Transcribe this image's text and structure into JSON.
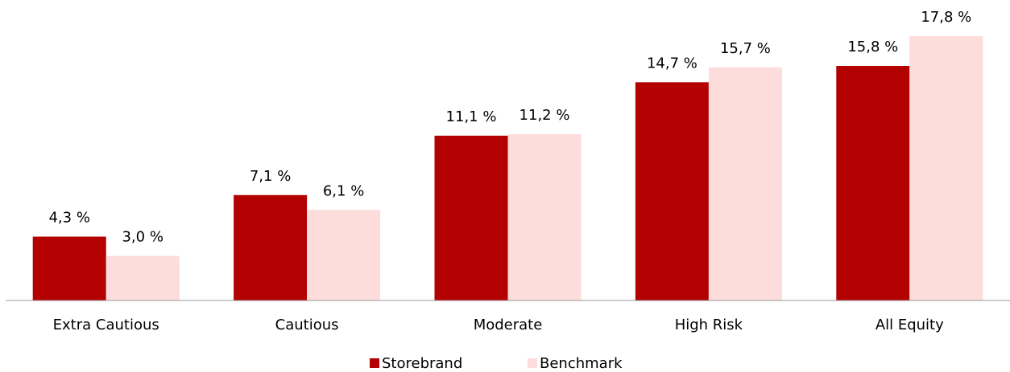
{
  "chart_data": {
    "type": "bar",
    "categories": [
      "Extra Cautious",
      "Cautious",
      "Moderate",
      "High Risk",
      "All Equity"
    ],
    "series": [
      {
        "name": "Storebrand",
        "color": "#b30000",
        "values": [
          4.3,
          7.1,
          11.1,
          14.7,
          15.8
        ],
        "value_labels": [
          "4,3 %",
          "7,1 %",
          "11,1 %",
          "14,7 %",
          "15,8 %"
        ]
      },
      {
        "name": "Benchmark",
        "color": "#fddcdc",
        "values": [
          3.0,
          6.1,
          11.2,
          15.7,
          17.8
        ],
        "value_labels": [
          "3,0 %",
          "6,1 %",
          "11,2 %",
          "15,7 %",
          "17,8 %"
        ]
      }
    ],
    "legend": "bottom"
  }
}
